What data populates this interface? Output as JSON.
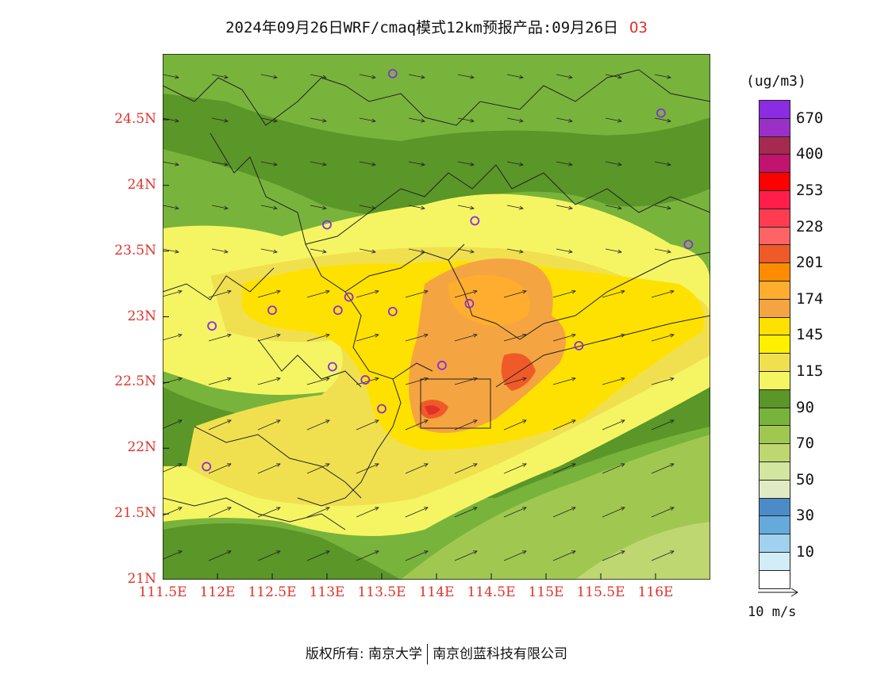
{
  "title": {
    "main": "2024年09月26日WRF/cmaq模式12km预报产品:09月26日",
    "species": "O3"
  },
  "axes": {
    "y_ticks": [
      "24.5N",
      "24N",
      "23.5N",
      "23N",
      "22.5N",
      "22N",
      "21.5N",
      "21N"
    ],
    "x_ticks": [
      "111.5E",
      "112E",
      "112.5E",
      "113E",
      "113.5E",
      "114E",
      "114.5E",
      "115E",
      "115.5E",
      "116E"
    ]
  },
  "legend": {
    "unit": "(ug/m3)",
    "labels": [
      "670",
      "400",
      "253",
      "228",
      "201",
      "174",
      "145",
      "115",
      "90",
      "70",
      "50",
      "30",
      "10"
    ],
    "colors": [
      "#8b2be2",
      "#9b30c8",
      "#a52a4e",
      "#c0146e",
      "#ff0000",
      "#ff1e4a",
      "#ff3c50",
      "#ff6464",
      "#f05a28",
      "#ff8c00",
      "#ffad2e",
      "#f5a442",
      "#ffe100",
      "#fff000",
      "#f0e050",
      "#f5f564",
      "#5a9628",
      "#78b43c",
      "#a0c850",
      "#bed770",
      "#d2e6a0",
      "#e1ebc3",
      "#4b8cc8",
      "#64aadc",
      "#a0d2f0",
      "#d2ecf8",
      "#ffffff"
    ]
  },
  "wind_scale": {
    "label": "10 m/s"
  },
  "footer": {
    "left": "版权所有: 南京大学",
    "right": "南京创蓝科技有限公司"
  },
  "stations": [
    {
      "lon": 113.6,
      "lat": 24.85
    },
    {
      "lon": 116.05,
      "lat": 24.55
    },
    {
      "lon": 113.0,
      "lat": 23.7
    },
    {
      "lon": 114.35,
      "lat": 23.73
    },
    {
      "lon": 116.3,
      "lat": 23.55
    },
    {
      "lon": 112.5,
      "lat": 23.05
    },
    {
      "lon": 113.2,
      "lat": 23.15
    },
    {
      "lon": 113.1,
      "lat": 23.05
    },
    {
      "lon": 113.6,
      "lat": 23.04
    },
    {
      "lon": 114.3,
      "lat": 23.1
    },
    {
      "lon": 111.95,
      "lat": 22.93
    },
    {
      "lon": 115.3,
      "lat": 22.78
    },
    {
      "lon": 113.05,
      "lat": 22.62
    },
    {
      "lon": 114.05,
      "lat": 22.63
    },
    {
      "lon": 113.35,
      "lat": 22.52
    },
    {
      "lon": 113.5,
      "lat": 22.3
    },
    {
      "lon": 111.9,
      "lat": 21.86
    }
  ]
}
